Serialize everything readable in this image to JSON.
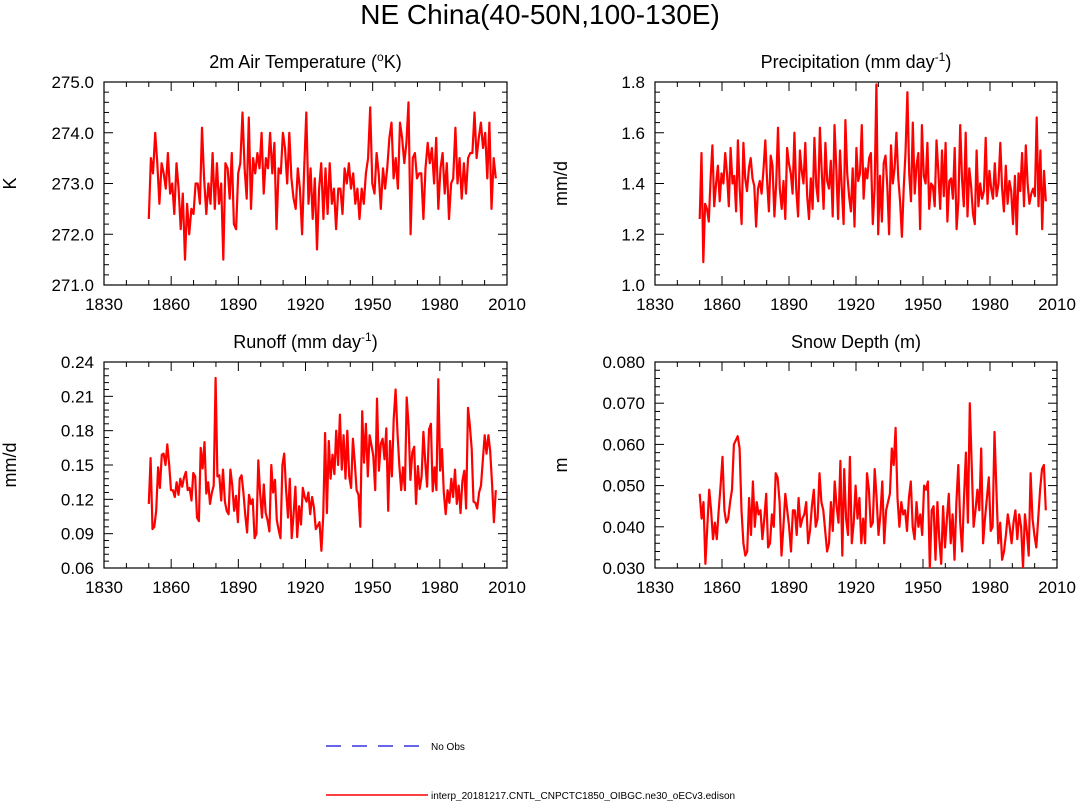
{
  "figure": {
    "title": "NE China(40-50N,100-130E)",
    "legend": [
      {
        "label": "No Obs",
        "color": "#3333dd",
        "style": "dashed"
      },
      {
        "label": "interp_20181217.CNTL_CNPCTC1850_OIBGC.ne30_oECv3.edison",
        "color": "#ff0000",
        "style": "solid"
      }
    ]
  },
  "chart_data": [
    {
      "type": "line",
      "title": "2m Air Temperature (",
      "title_sup": "o",
      "title_tail": "K)",
      "xlabel": "",
      "ylabel": "K",
      "xlim": [
        1830,
        2010
      ],
      "xticks": [
        1830,
        1860,
        1890,
        1920,
        1950,
        1980,
        2010
      ],
      "ylim": [
        271.0,
        275.0
      ],
      "yticks": [
        "271.0",
        "272.0",
        "273.0",
        "274.0",
        "275.0"
      ],
      "ystep": 1.0,
      "series": [
        {
          "name": "interp_20181217.CNTL_CNPCTC1850_OIBGC.ne30_oECv3.edison",
          "color": "#ff0000",
          "x_start": 1850,
          "values": [
            272.3,
            273.5,
            273.2,
            274.0,
            273.4,
            272.6,
            273.4,
            273.2,
            272.9,
            273.6,
            272.8,
            273.0,
            272.4,
            273.4,
            272.9,
            272.1,
            272.8,
            271.5,
            272.6,
            272.0,
            272.5,
            272.4,
            273.0,
            273.0,
            272.6,
            274.1,
            273.1,
            272.4,
            273.0,
            272.6,
            273.6,
            272.5,
            273.4,
            272.6,
            273.0,
            271.5,
            273.4,
            273.3,
            272.7,
            273.6,
            272.2,
            272.1,
            273.2,
            273.4,
            274.4,
            273.3,
            272.7,
            274.3,
            272.5,
            273.5,
            273.2,
            273.6,
            273.3,
            274.0,
            272.8,
            273.5,
            273.3,
            274.0,
            273.2,
            273.8,
            272.1,
            273.3,
            273.2,
            274.0,
            273.7,
            273.0,
            274.0,
            273.1,
            272.7,
            272.5,
            273.3,
            272.9,
            272.0,
            273.3,
            274.4,
            272.6,
            273.3,
            272.3,
            273.1,
            271.7,
            272.9,
            273.4,
            272.3,
            273.3,
            272.4,
            273.4,
            272.6,
            272.9,
            272.1,
            272.9,
            272.9,
            272.4,
            273.3,
            273.0,
            273.4,
            272.9,
            273.2,
            272.6,
            272.9,
            272.3,
            272.9,
            272.6,
            273.2,
            273.5,
            274.5,
            273.0,
            272.8,
            273.6,
            273.2,
            272.5,
            273.3,
            272.9,
            273.3,
            273.9,
            274.2,
            273.1,
            273.5,
            272.9,
            274.2,
            273.9,
            273.4,
            273.8,
            274.6,
            272.0,
            273.5,
            273.6,
            273.1,
            273.2,
            273.2,
            272.3,
            273.3,
            273.8,
            273.4,
            273.7,
            273.0,
            273.9,
            272.5,
            273.3,
            273.6,
            272.8,
            273.4,
            272.3,
            273.0,
            273.1,
            274.1,
            273.0,
            273.5,
            272.7,
            273.4,
            272.8,
            273.5,
            273.6,
            273.6,
            274.4,
            273.5,
            273.9,
            274.2,
            273.7,
            274.0,
            273.1,
            274.2,
            272.5,
            273.5,
            273.1
          ]
        }
      ]
    },
    {
      "type": "line",
      "title": "Precipitation (mm day",
      "title_sup": "-1",
      "title_tail": ")",
      "xlabel": "",
      "ylabel": "mm/d",
      "xlim": [
        1830,
        2010
      ],
      "xticks": [
        1830,
        1860,
        1890,
        1920,
        1950,
        1980,
        2010
      ],
      "ylim": [
        1.0,
        1.8
      ],
      "yticks": [
        "1.0",
        "1.2",
        "1.4",
        "1.6",
        "1.8"
      ],
      "ystep": 0.2,
      "series": [
        {
          "name": "interp_20181217.CNTL_CNPCTC1850_OIBGC.ne30_oECv3.edison",
          "color": "#ff0000",
          "x_start": 1850,
          "values": [
            1.26,
            1.52,
            1.09,
            1.32,
            1.3,
            1.25,
            1.42,
            1.55,
            1.31,
            1.4,
            1.47,
            1.33,
            1.44,
            1.4,
            1.52,
            1.44,
            1.31,
            1.54,
            1.4,
            1.43,
            1.29,
            1.57,
            1.38,
            1.24,
            1.56,
            1.42,
            1.37,
            1.46,
            1.5,
            1.42,
            1.39,
            1.23,
            1.38,
            1.41,
            1.36,
            1.45,
            1.57,
            1.41,
            1.29,
            1.51,
            1.47,
            1.27,
            1.4,
            1.62,
            1.38,
            1.3,
            1.41,
            1.26,
            1.54,
            1.48,
            1.44,
            1.36,
            1.6,
            1.38,
            1.27,
            1.53,
            1.45,
            1.4,
            1.56,
            1.35,
            1.26,
            1.42,
            1.3,
            1.58,
            1.39,
            1.33,
            1.62,
            1.45,
            1.3,
            1.56,
            1.41,
            1.38,
            1.49,
            1.27,
            1.63,
            1.46,
            1.26,
            1.53,
            1.38,
            1.24,
            1.65,
            1.44,
            1.35,
            1.29,
            1.46,
            1.23,
            1.54,
            1.41,
            1.44,
            1.63,
            1.34,
            1.46,
            1.42,
            1.5,
            1.52,
            1.24,
            1.38,
            1.79,
            1.2,
            1.43,
            1.25,
            1.48,
            1.51,
            1.39,
            1.2,
            1.55,
            1.4,
            1.46,
            1.6,
            1.42,
            1.33,
            1.19,
            1.38,
            1.52,
            1.76,
            1.44,
            1.33,
            1.64,
            1.36,
            1.47,
            1.52,
            1.22,
            1.63,
            1.43,
            1.4,
            1.56,
            1.3,
            1.4,
            1.39,
            1.31,
            1.57,
            1.45,
            1.3,
            1.53,
            1.35,
            1.56,
            1.25,
            1.41,
            1.42,
            1.34,
            1.54,
            1.22,
            1.33,
            1.63,
            1.42,
            1.31,
            1.6,
            1.27,
            1.46,
            1.39,
            1.28,
            1.24,
            1.53,
            1.31,
            1.4,
            1.34,
            1.37,
            1.58,
            1.32,
            1.45,
            1.38,
            1.34,
            1.48,
            1.35,
            1.4,
            1.56,
            1.38,
            1.29,
            1.47,
            1.32,
            1.41,
            1.37,
            1.24,
            1.43,
            1.2,
            1.44,
            1.37,
            1.52,
            1.31,
            1.55,
            1.4,
            1.32,
            1.36,
            1.38,
            1.35,
            1.66,
            1.31,
            1.53,
            1.22,
            1.45,
            1.33
          ]
        }
      ]
    },
    {
      "type": "line",
      "title": "Runoff (mm day",
      "title_sup": "-1",
      "title_tail": ")",
      "xlabel": "",
      "ylabel": "mm/d",
      "xlim": [
        1830,
        2010
      ],
      "xticks": [
        1830,
        1860,
        1890,
        1920,
        1950,
        1980,
        2010
      ],
      "ylim": [
        0.06,
        0.24
      ],
      "yticks": [
        "0.06",
        "0.09",
        "0.12",
        "0.15",
        "0.18",
        "0.21",
        "0.24"
      ],
      "ystep": 0.03,
      "series": [
        {
          "name": "interp_20181217.CNTL_CNPCTC1850_OIBGC.ne30_oECv3.edison",
          "color": "#ff0000",
          "x_start": 1850,
          "values": [
            0.116,
            0.156,
            0.094,
            0.096,
            0.11,
            0.148,
            0.13,
            0.159,
            0.16,
            0.15,
            0.168,
            0.15,
            0.128,
            0.128,
            0.122,
            0.135,
            0.124,
            0.138,
            0.131,
            0.139,
            0.144,
            0.128,
            0.13,
            0.119,
            0.143,
            0.14,
            0.104,
            0.101,
            0.165,
            0.147,
            0.17,
            0.125,
            0.135,
            0.116,
            0.126,
            0.132,
            0.226,
            0.14,
            0.141,
            0.119,
            0.146,
            0.118,
            0.11,
            0.107,
            0.146,
            0.132,
            0.11,
            0.123,
            0.1,
            0.138,
            0.141,
            0.126,
            0.106,
            0.091,
            0.124,
            0.116,
            0.12,
            0.086,
            0.09,
            0.154,
            0.126,
            0.104,
            0.133,
            0.108,
            0.102,
            0.092,
            0.15,
            0.126,
            0.137,
            0.102,
            0.093,
            0.086,
            0.15,
            0.16,
            0.128,
            0.104,
            0.138,
            0.086,
            0.106,
            0.131,
            0.087,
            0.114,
            0.098,
            0.13,
            0.122,
            0.118,
            0.126,
            0.107,
            0.122,
            0.113,
            0.094,
            0.097,
            0.1,
            0.075,
            0.105,
            0.178,
            0.108,
            0.171,
            0.138,
            0.159,
            0.142,
            0.18,
            0.15,
            0.194,
            0.146,
            0.176,
            0.138,
            0.18,
            0.14,
            0.13,
            0.173,
            0.152,
            0.128,
            0.124,
            0.096,
            0.197,
            0.152,
            0.186,
            0.14,
            0.176,
            0.167,
            0.158,
            0.128,
            0.208,
            0.145,
            0.168,
            0.173,
            0.155,
            0.182,
            0.11,
            0.171,
            0.14,
            0.19,
            0.216,
            0.178,
            0.15,
            0.128,
            0.148,
            0.128,
            0.209,
            0.184,
            0.137,
            0.161,
            0.166,
            0.116,
            0.149,
            0.129,
            0.14,
            0.179,
            0.152,
            0.131,
            0.181,
            0.186,
            0.127,
            0.148,
            0.128,
            0.225,
            0.145,
            0.164,
            0.126,
            0.107,
            0.128,
            0.117,
            0.138,
            0.122,
            0.146,
            0.116,
            0.132,
            0.108,
            0.136,
            0.145,
            0.112,
            0.2,
            0.185,
            0.164,
            0.118,
            0.117,
            0.112,
            0.126,
            0.132,
            0.154,
            0.176,
            0.16,
            0.176,
            0.162,
            0.133,
            0.1,
            0.128
          ]
        }
      ]
    },
    {
      "type": "line",
      "title": "Snow Depth (m)",
      "title_sup": "",
      "title_tail": "",
      "xlabel": "",
      "ylabel": "m",
      "xlim": [
        1830,
        2010
      ],
      "xticks": [
        1830,
        1860,
        1890,
        1920,
        1950,
        1980,
        2010
      ],
      "ylim": [
        0.03,
        0.08
      ],
      "yticks": [
        "0.030",
        "0.040",
        "0.050",
        "0.060",
        "0.070",
        "0.080"
      ],
      "ystep": 0.01,
      "series": [
        {
          "name": "interp_20181217.CNTL_CNPCTC1850_OIBGC.ne30_oECv3.edison",
          "color": "#ff0000",
          "x_start": 1850,
          "values": [
            0.048,
            0.042,
            0.046,
            0.031,
            0.04,
            0.049,
            0.044,
            0.037,
            0.041,
            0.037,
            0.044,
            0.05,
            0.057,
            0.044,
            0.041,
            0.042,
            0.046,
            0.049,
            0.06,
            0.061,
            0.062,
            0.059,
            0.044,
            0.036,
            0.033,
            0.034,
            0.047,
            0.038,
            0.051,
            0.04,
            0.046,
            0.043,
            0.044,
            0.037,
            0.042,
            0.048,
            0.035,
            0.036,
            0.043,
            0.04,
            0.053,
            0.052,
            0.046,
            0.033,
            0.04,
            0.048,
            0.044,
            0.04,
            0.034,
            0.044,
            0.044,
            0.038,
            0.047,
            0.04,
            0.042,
            0.043,
            0.046,
            0.036,
            0.039,
            0.045,
            0.049,
            0.04,
            0.042,
            0.053,
            0.046,
            0.044,
            0.039,
            0.034,
            0.036,
            0.046,
            0.039,
            0.051,
            0.045,
            0.041,
            0.056,
            0.033,
            0.054,
            0.042,
            0.038,
            0.057,
            0.036,
            0.041,
            0.05,
            0.042,
            0.047,
            0.036,
            0.042,
            0.036,
            0.053,
            0.049,
            0.04,
            0.041,
            0.054,
            0.047,
            0.038,
            0.043,
            0.051,
            0.036,
            0.044,
            0.046,
            0.048,
            0.059,
            0.055,
            0.064,
            0.047,
            0.04,
            0.046,
            0.043,
            0.044,
            0.039,
            0.047,
            0.051,
            0.04,
            0.037,
            0.046,
            0.04,
            0.043,
            0.038,
            0.05,
            0.049,
            0.051,
            0.03,
            0.044,
            0.045,
            0.032,
            0.046,
            0.037,
            0.031,
            0.045,
            0.035,
            0.042,
            0.048,
            0.036,
            0.043,
            0.032,
            0.046,
            0.055,
            0.041,
            0.034,
            0.047,
            0.058,
            0.041,
            0.07,
            0.055,
            0.04,
            0.044,
            0.049,
            0.044,
            0.059,
            0.036,
            0.042,
            0.047,
            0.052,
            0.039,
            0.04,
            0.063,
            0.049,
            0.036,
            0.041,
            0.032,
            0.034,
            0.038,
            0.043,
            0.04,
            0.036,
            0.041,
            0.044,
            0.037,
            0.043,
            0.04,
            0.03,
            0.043,
            0.039,
            0.033,
            0.053,
            0.042,
            0.038,
            0.035,
            0.042,
            0.049,
            0.054,
            0.055,
            0.044
          ]
        }
      ]
    }
  ]
}
